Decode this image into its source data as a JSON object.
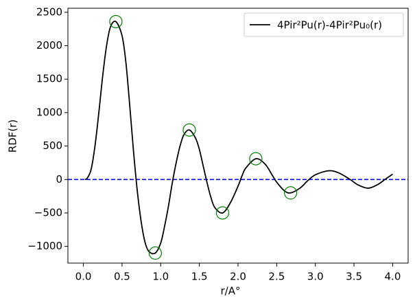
{
  "chart_data": {
    "type": "line",
    "xlabel": "r/A°",
    "ylabel": "RDF(r)",
    "xlim": [
      -0.2,
      4.2
    ],
    "ylim": [
      -1250,
      2560
    ],
    "xticks": [
      {
        "value": 0,
        "label": "0.0"
      },
      0.5,
      {
        "value": 1,
        "label": "1.0"
      },
      1.5,
      {
        "value": 2,
        "label": "2.0"
      },
      2.5,
      {
        "value": 3,
        "label": "3.0"
      },
      3.5,
      {
        "value": 4,
        "label": "4.0"
      }
    ],
    "yticks": [
      {
        "value": -1000,
        "label": "−1000"
      },
      {
        "value": -500,
        "label": "−500"
      },
      0,
      500,
      1000,
      1500,
      2000,
      2500
    ],
    "legend": "upper right",
    "series": [
      {
        "name": "4Pir²Pu(r)-4Pir²Pu₀(r)",
        "color": "#000000",
        "x": [
          0.02,
          0.05,
          0.1,
          0.15,
          0.2,
          0.25,
          0.3,
          0.35,
          0.42,
          0.5,
          0.55,
          0.6,
          0.65,
          0.7,
          0.75,
          0.8,
          0.85,
          0.93,
          1.0,
          1.05,
          1.1,
          1.15,
          1.2,
          1.25,
          1.3,
          1.37,
          1.45,
          1.5,
          1.55,
          1.6,
          1.65,
          1.7,
          1.8,
          1.9,
          2.0,
          2.05,
          2.1,
          2.23,
          2.35,
          2.45,
          2.5,
          2.6,
          2.68,
          2.8,
          2.9,
          3.0,
          3.17,
          3.3,
          3.45,
          3.55,
          3.68,
          3.8,
          3.9,
          4.0
        ],
        "values": [
          0,
          20,
          150,
          500,
          1000,
          1550,
          2000,
          2280,
          2360,
          2150,
          1750,
          1100,
          400,
          -200,
          -650,
          -950,
          -1080,
          -1100,
          -950,
          -700,
          -400,
          -50,
          250,
          500,
          670,
          740,
          620,
          450,
          200,
          -50,
          -270,
          -420,
          -500,
          -350,
          -100,
          50,
          170,
          310,
          230,
          50,
          -40,
          -170,
          -200,
          -130,
          -20,
          70,
          130,
          100,
          0,
          -80,
          -130,
          -80,
          0,
          80
        ]
      }
    ],
    "markers": {
      "color": "#008000",
      "x": [
        0.42,
        0.93,
        1.37,
        1.8,
        2.23,
        2.68
      ],
      "values": [
        2360,
        -1100,
        740,
        -500,
        310,
        -200
      ]
    },
    "hline": {
      "value": 0,
      "color": "#0000ff"
    }
  }
}
